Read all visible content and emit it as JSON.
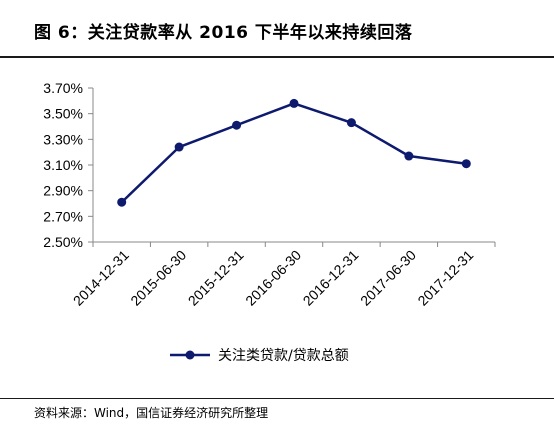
{
  "header": {
    "title": "图 6：关注贷款率从 2016 下半年以来持续回落"
  },
  "footer": {
    "source": "资料来源：Wind，国信证券经济研究所整理"
  },
  "colors": {
    "series": "#0d1a6e",
    "axis": "#888888",
    "rule": "#1a1a1a"
  },
  "chart_data": {
    "type": "line",
    "title": "",
    "xlabel": "",
    "ylabel": "",
    "categories": [
      "2014-12-31",
      "2015-06-30",
      "2015-12-31",
      "2016-06-30",
      "2016-12-31",
      "2017-06-30",
      "2017-12-31"
    ],
    "series": [
      {
        "name": "关注类贷款/贷款总额",
        "values": [
          2.81,
          3.24,
          3.41,
          3.58,
          3.43,
          3.17,
          3.11
        ],
        "marker": "circle"
      }
    ],
    "ylim": [
      2.5,
      3.7
    ],
    "yticks": [
      "2.50%",
      "2.70%",
      "2.90%",
      "3.10%",
      "3.30%",
      "3.50%",
      "3.70%"
    ],
    "grid": false,
    "legend_position": "bottom"
  }
}
